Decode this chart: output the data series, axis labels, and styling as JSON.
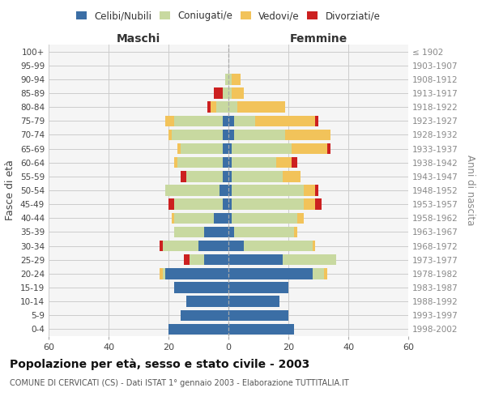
{
  "age_groups": [
    "0-4",
    "5-9",
    "10-14",
    "15-19",
    "20-24",
    "25-29",
    "30-34",
    "35-39",
    "40-44",
    "45-49",
    "50-54",
    "55-59",
    "60-64",
    "65-69",
    "70-74",
    "75-79",
    "80-84",
    "85-89",
    "90-94",
    "95-99",
    "100+"
  ],
  "birth_years": [
    "1998-2002",
    "1993-1997",
    "1988-1992",
    "1983-1987",
    "1978-1982",
    "1973-1977",
    "1968-1972",
    "1963-1967",
    "1958-1962",
    "1953-1957",
    "1948-1952",
    "1943-1947",
    "1938-1942",
    "1933-1937",
    "1928-1932",
    "1923-1927",
    "1918-1922",
    "1913-1917",
    "1908-1912",
    "1903-1907",
    "≤ 1902"
  ],
  "males": {
    "celibi": [
      20,
      16,
      14,
      18,
      21,
      8,
      10,
      8,
      5,
      2,
      3,
      2,
      2,
      2,
      2,
      2,
      0,
      0,
      0,
      0,
      0
    ],
    "coniugati": [
      0,
      0,
      0,
      0,
      1,
      5,
      12,
      10,
      13,
      16,
      18,
      12,
      15,
      14,
      17,
      16,
      4,
      2,
      1,
      0,
      0
    ],
    "vedovi": [
      0,
      0,
      0,
      0,
      1,
      0,
      0,
      0,
      1,
      0,
      0,
      0,
      1,
      1,
      1,
      3,
      2,
      0,
      0,
      0,
      0
    ],
    "divorziati": [
      0,
      0,
      0,
      0,
      0,
      2,
      1,
      0,
      0,
      2,
      0,
      2,
      0,
      0,
      0,
      0,
      1,
      3,
      0,
      0,
      0
    ]
  },
  "females": {
    "nubili": [
      22,
      20,
      17,
      20,
      28,
      18,
      5,
      2,
      1,
      1,
      1,
      1,
      1,
      1,
      2,
      2,
      0,
      0,
      0,
      0,
      0
    ],
    "coniugate": [
      0,
      0,
      0,
      0,
      4,
      18,
      23,
      20,
      22,
      24,
      24,
      17,
      15,
      20,
      17,
      7,
      3,
      1,
      1,
      0,
      0
    ],
    "vedove": [
      0,
      0,
      0,
      0,
      1,
      0,
      1,
      1,
      2,
      4,
      4,
      6,
      5,
      12,
      15,
      20,
      16,
      4,
      3,
      0,
      0
    ],
    "divorziate": [
      0,
      0,
      0,
      0,
      0,
      0,
      0,
      0,
      0,
      2,
      1,
      0,
      2,
      1,
      0,
      1,
      0,
      0,
      0,
      0,
      0
    ]
  },
  "colors": {
    "celibi": "#3b6ea5",
    "coniugati": "#c8d9a0",
    "vedovi": "#f2c35a",
    "divorziati": "#cc2020"
  },
  "legend_labels": [
    "Celibi/Nubili",
    "Coniugati/e",
    "Vedovi/e",
    "Divorziati/e"
  ],
  "xlim": 60,
  "title": "Popolazione per età, sesso e stato civile - 2003",
  "subtitle": "COMUNE DI CERVICATI (CS) - Dati ISTAT 1° gennaio 2003 - Elaborazione TUTTITALIA.IT",
  "ylabel_left": "Fasce di età",
  "ylabel_right": "Anni di nascita",
  "xlabel_left": "Maschi",
  "xlabel_right": "Femmine",
  "bg_color": "#f5f5f5",
  "grid_color": "#cccccc"
}
